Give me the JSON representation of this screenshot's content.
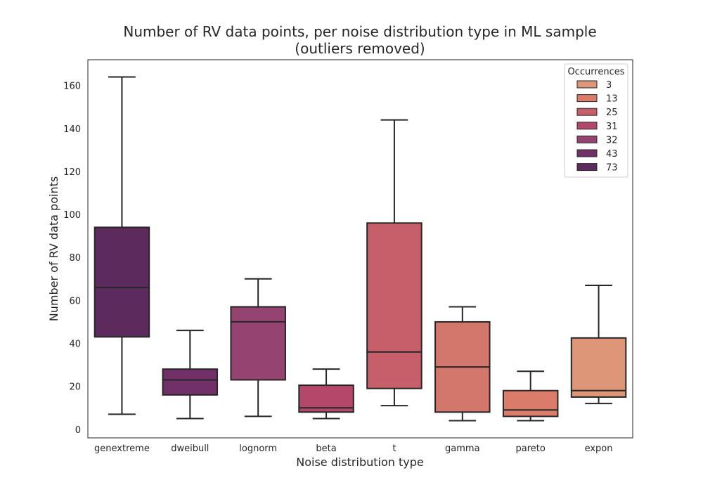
{
  "chart_data": {
    "type": "box",
    "title": [
      "Number of RV data points, per noise distribution type in ML sample",
      "(outliers removed)"
    ],
    "xlabel": "Noise distribution type",
    "ylabel": "Number of RV data points",
    "ylim": [
      -4,
      172
    ],
    "yticks": [
      0,
      20,
      40,
      60,
      80,
      100,
      120,
      140,
      160
    ],
    "grid": false,
    "legend": {
      "title": "Occurrences",
      "placement": "top-right",
      "entries": [
        {
          "label": "3",
          "color": "#dd9677"
        },
        {
          "label": "13",
          "color": "#db7b6a"
        },
        {
          "label": "25",
          "color": "#c75f6b"
        },
        {
          "label": "31",
          "color": "#b3486b"
        },
        {
          "label": "32",
          "color": "#954371"
        },
        {
          "label": "43",
          "color": "#713068"
        },
        {
          "label": "73",
          "color": "#5c2a5d"
        }
      ]
    },
    "categories": [
      "genextreme",
      "dweibull",
      "lognorm",
      "beta",
      "t",
      "gamma",
      "pareto",
      "expon"
    ],
    "boxes": [
      {
        "category": "genextreme",
        "whisker_low": 7,
        "q1": 43,
        "median": 66,
        "q3": 94,
        "whisker_high": 164,
        "color": "#5c2a5d"
      },
      {
        "category": "dweibull",
        "whisker_low": 5,
        "q1": 16,
        "median": 23,
        "q3": 28,
        "whisker_high": 46,
        "color": "#713068"
      },
      {
        "category": "lognorm",
        "whisker_low": 6,
        "q1": 23,
        "median": 50,
        "q3": 57,
        "whisker_high": 70,
        "color": "#954371"
      },
      {
        "category": "beta",
        "whisker_low": 5,
        "q1": 8,
        "median": 10,
        "q3": 20.5,
        "whisker_high": 28,
        "color": "#b3486b"
      },
      {
        "category": "t",
        "whisker_low": 11,
        "q1": 19,
        "median": 36,
        "q3": 96,
        "whisker_high": 144,
        "color": "#c75f6b"
      },
      {
        "category": "gamma",
        "whisker_low": 4,
        "q1": 8,
        "median": 29,
        "q3": 50,
        "whisker_high": 57,
        "color": "#d3766b"
      },
      {
        "category": "pareto",
        "whisker_low": 4,
        "q1": 6,
        "median": 9,
        "q3": 18,
        "whisker_high": 27,
        "color": "#db7b6a"
      },
      {
        "category": "expon",
        "whisker_low": 12,
        "q1": 15,
        "median": 18,
        "q3": 42.5,
        "whisker_high": 67,
        "color": "#dd9677"
      }
    ]
  }
}
